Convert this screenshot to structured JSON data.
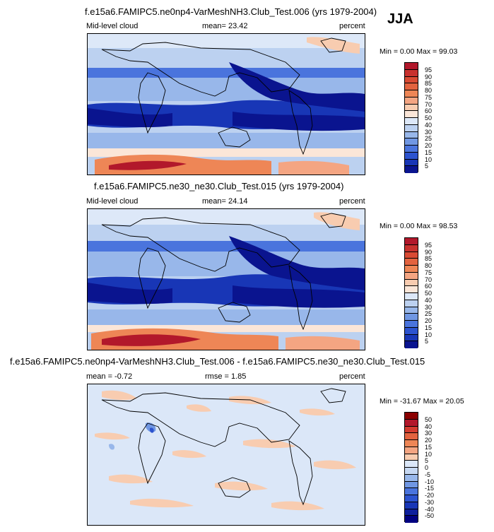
{
  "season": "JJA",
  "panels": [
    {
      "title": "f.e15a6.FAMIPC5.ne0np4-VarMeshNH3.Club_Test.006 (yrs 1979-2004)",
      "left_label": "Mid-level cloud",
      "center_label": "mean=  23.42",
      "right_label": "percent",
      "minmax": "Min =   0.00 Max = 99.03",
      "levels": [
        "95",
        "90",
        "85",
        "80",
        "75",
        "70",
        "60",
        "50",
        "40",
        "30",
        "25",
        "20",
        "15",
        "10",
        "5"
      ],
      "colors": [
        "#b2182b",
        "#c8312e",
        "#d94a33",
        "#e3633f",
        "#ee8656",
        "#f4a582",
        "#f8ccb0",
        "#fbe6d8",
        "#dde8f8",
        "#bcd1f0",
        "#98b7ea",
        "#7097e3",
        "#4a74dd",
        "#2c53cf",
        "#1836b6",
        "#0a148f"
      ]
    },
    {
      "title": "f.e15a6.FAMIPC5.ne30_ne30.Club_Test.015 (yrs 1979-2004)",
      "left_label": "Mid-level cloud",
      "center_label": "mean=  24.14",
      "right_label": "percent",
      "minmax": "Min =   0.00 Max = 98.53",
      "levels": [
        "95",
        "90",
        "85",
        "80",
        "75",
        "70",
        "60",
        "50",
        "40",
        "30",
        "25",
        "20",
        "15",
        "10",
        "5"
      ],
      "colors": [
        "#b2182b",
        "#c8312e",
        "#d94a33",
        "#e3633f",
        "#ee8656",
        "#f4a582",
        "#f8ccb0",
        "#fbe6d8",
        "#dde8f8",
        "#bcd1f0",
        "#98b7ea",
        "#7097e3",
        "#4a74dd",
        "#2c53cf",
        "#1836b6",
        "#0a148f"
      ]
    },
    {
      "title": "f.e15a6.FAMIPC5.ne0np4-VarMeshNH3.Club_Test.006 - f.e15a6.FAMIPC5.ne30_ne30.Club_Test.015",
      "left_label": "mean =  -0.72",
      "center_label": "rmse =   1.85",
      "right_label": "percent",
      "minmax": "Min = -31.67 Max = 20.05",
      "levels": [
        "50",
        "40",
        "30",
        "20",
        "15",
        "10",
        "5",
        "0",
        "-5",
        "-10",
        "-15",
        "-20",
        "-30",
        "-40",
        "-50"
      ],
      "colors": [
        "#8b0000",
        "#b2182b",
        "#d33b2f",
        "#e3633f",
        "#ee8656",
        "#f4a582",
        "#f8ccb0",
        "#dbe7f8",
        "#c6d8f2",
        "#98b7ea",
        "#7097e3",
        "#4a74dd",
        "#2c53cf",
        "#1836b6",
        "#0d1f9c",
        "#000080"
      ]
    }
  ]
}
